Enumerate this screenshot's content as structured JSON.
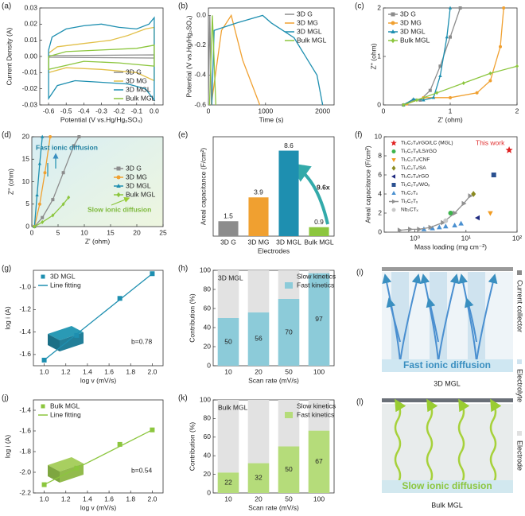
{
  "chart_data": [
    {
      "panel": "(a)",
      "type": "line",
      "xlabel": "Potential (V vs.Hg/Hg₂SO₄)",
      "ylabel": "Current Density (A)",
      "xlim": [
        -0.65,
        0.05
      ],
      "xticks": [
        -0.6,
        -0.5,
        -0.4,
        -0.3,
        -0.2,
        -0.1,
        {
          "value": 0,
          "label": "0.0"
        }
      ],
      "ylim": [
        -0.03,
        0.03
      ],
      "yticks": [
        -0.03,
        -0.02,
        -0.01,
        {
          "value": 0,
          "label": "0.00"
        },
        0.01,
        0.02,
        0.03
      ],
      "legend": "lower right",
      "series": [
        {
          "name": "3D G",
          "color": "#8c8c8c",
          "x": [
            -0.6,
            0,
            0,
            -0.6,
            -0.6
          ],
          "values": [
            0.0005,
            0.001,
            -0.001,
            -0.0005,
            0.0005
          ]
        },
        {
          "name": "3D MG",
          "color": "#e2c04a",
          "x": [
            -0.6,
            -0.55,
            -0.4,
            -0.25,
            -0.15,
            -0.05,
            0,
            0,
            -0.1,
            -0.3,
            -0.5,
            -0.6,
            -0.6
          ],
          "values": [
            0.002,
            0.006,
            0.008,
            0.01,
            0.013,
            0.017,
            0.018,
            -0.015,
            -0.01,
            -0.008,
            -0.007,
            -0.01,
            0.002
          ]
        },
        {
          "name": "3D MGL",
          "color": "#1e8fb0",
          "x": [
            -0.6,
            -0.58,
            -0.5,
            -0.4,
            -0.3,
            -0.2,
            -0.1,
            -0.03,
            0,
            0,
            -0.05,
            -0.15,
            -0.3,
            -0.45,
            -0.55,
            -0.6,
            -0.6
          ],
          "values": [
            0.004,
            0.012,
            0.017,
            0.019,
            0.02,
            0.018,
            0.017,
            0.02,
            0.024,
            -0.027,
            -0.02,
            -0.017,
            -0.016,
            -0.015,
            -0.018,
            -0.026,
            0.004
          ]
        },
        {
          "name": "Bulk MGL",
          "color": "#8cc63e",
          "x": [
            -0.6,
            -0.5,
            -0.3,
            -0.1,
            0,
            0,
            -0.2,
            -0.4,
            -0.6,
            -0.6
          ],
          "values": [
            0,
            0.003,
            0.004,
            0.005,
            0.007,
            -0.006,
            -0.004,
            -0.003,
            -0.008,
            0
          ]
        }
      ]
    },
    {
      "panel": "(b)",
      "type": "line",
      "xlabel": "Time (s)",
      "ylabel": "Potential (V vs.Hg/Hg₂SO₄)",
      "xlim": [
        0,
        2200
      ],
      "xticks": [
        0,
        1000,
        2000
      ],
      "ylim": [
        -0.6,
        0.05
      ],
      "yticks": [
        -0.6,
        -0.4,
        -0.2,
        {
          "value": 0,
          "label": "0.0"
        }
      ],
      "legend": "upper right",
      "series": [
        {
          "name": "3D G",
          "color": "#8c8c8c",
          "x": [
            0,
            25,
            55
          ],
          "values": [
            -0.6,
            0,
            -0.6
          ]
        },
        {
          "name": "3D MG",
          "color": "#f0a030",
          "x": [
            50,
            230,
            400,
            600,
            900
          ],
          "values": [
            -0.6,
            -0.1,
            0,
            -0.3,
            -0.6
          ]
        },
        {
          "name": "3D MGL",
          "color": "#1e8fb0",
          "x": [
            60,
            100,
            500,
            950,
            1100,
            1500,
            1900,
            2000
          ],
          "values": [
            -0.6,
            -0.1,
            -0.05,
            0,
            -0.05,
            -0.15,
            -0.4,
            -0.6
          ]
        },
        {
          "name": "Bulk MGL",
          "color": "#8cc63e",
          "x": [
            20,
            70,
            130
          ],
          "values": [
            -0.6,
            0,
            -0.6
          ]
        }
      ]
    },
    {
      "panel": "(c)",
      "type": "line",
      "xlabel": "Z' (ohm)",
      "ylabel": "Z'' (ohm)",
      "xlim": [
        0,
        2
      ],
      "xticks": [
        0,
        1,
        2
      ],
      "ylim": [
        0,
        2
      ],
      "yticks": [
        0,
        1,
        2
      ],
      "legend": "upper left",
      "series": [
        {
          "name": "3D G",
          "color": "#8c8c8c",
          "marker": "square",
          "x": [
            0.3,
            0.45,
            0.55,
            0.7,
            0.85,
            1.0,
            1.15
          ],
          "values": [
            0,
            0.1,
            0.1,
            0.3,
            0.8,
            1.4,
            2.0
          ]
        },
        {
          "name": "3D MG",
          "color": "#f0a030",
          "marker": "circle",
          "x": [
            0.35,
            0.6,
            1.0,
            1.4,
            1.6,
            1.75,
            1.8
          ],
          "values": [
            0.02,
            0.15,
            0.15,
            0.25,
            0.5,
            1.2,
            2.0
          ]
        },
        {
          "name": "3D MGL",
          "color": "#1e8fb0",
          "marker": "triangle",
          "x": [
            0.3,
            0.45,
            0.6,
            0.75,
            0.85,
            0.95,
            1.0
          ],
          "values": [
            0,
            0.12,
            0.1,
            0.15,
            0.6,
            1.4,
            2.0
          ]
        },
        {
          "name": "Bulk MGL",
          "color": "#8cc63e",
          "marker": "diamond",
          "x": [
            0.3,
            0.5,
            0.8,
            1.2,
            1.6,
            2.0
          ],
          "values": [
            0,
            0.1,
            0.25,
            0.45,
            0.65,
            0.8
          ]
        }
      ]
    },
    {
      "panel": "(d)",
      "type": "line",
      "xlabel": "Z' (ohm)",
      "ylabel": "Z'' (ohm)",
      "xlim": [
        0,
        25
      ],
      "xticks": [
        0,
        5,
        10,
        15,
        20,
        25
      ],
      "ylim": [
        0,
        20
      ],
      "yticks": [
        0,
        5,
        10,
        15,
        20
      ],
      "legend": "center right",
      "annotations": [
        "Fast ionic diffusion",
        "Slow ionic diffusion"
      ],
      "series": [
        {
          "name": "3D G",
          "color": "#8c8c8c",
          "marker": "square",
          "x": [
            0.5,
            2,
            4,
            6,
            8,
            9
          ],
          "values": [
            0,
            2,
            6,
            12,
            18,
            20
          ]
        },
        {
          "name": "3D MG",
          "color": "#f0a030",
          "marker": "circle",
          "x": [
            0.5,
            1.5,
            2.5,
            3.5
          ],
          "values": [
            0,
            5,
            12,
            20
          ]
        },
        {
          "name": "3D MGL",
          "color": "#1e8fb0",
          "marker": "triangle",
          "x": [
            0.5,
            1,
            1.5,
            2
          ],
          "values": [
            0,
            7,
            14,
            20
          ]
        },
        {
          "name": "Bulk MGL",
          "color": "#8cc63e",
          "marker": "diamond",
          "x": [
            0.5,
            2,
            4,
            6,
            7
          ],
          "values": [
            0,
            1,
            2.5,
            5,
            6.5
          ]
        }
      ]
    },
    {
      "panel": "(e)",
      "type": "bar",
      "xlabel": "Electrodes",
      "ylabel": "Areal capacitance (F/cm²)",
      "ylim": [
        0,
        10
      ],
      "categories": [
        "3D G",
        "3D MG",
        "3D MGL",
        "Bulk MGL"
      ],
      "values": [
        1.5,
        3.9,
        8.6,
        0.9
      ],
      "colors": [
        "#8c8c8c",
        "#f0a030",
        "#1e8fb0",
        "#8cc63e"
      ],
      "annotations": [
        "9.6x"
      ]
    },
    {
      "panel": "(f)",
      "type": "scatter",
      "xlog": true,
      "xlabel": "Mass loading (mg cm⁻²)",
      "ylabel": "Areal capacitance (F/cm²)",
      "xlim": [
        0.25,
        100
      ],
      "xticks": [
        {
          "value": 1,
          "label": "10⁰"
        },
        {
          "value": 10,
          "label": "10¹"
        },
        {
          "value": 100,
          "label": "10²"
        }
      ],
      "ylim": [
        0,
        10
      ],
      "yticks": [
        0,
        2,
        4,
        6,
        8,
        10
      ],
      "legend": "upper left",
      "annotations": [
        "This work"
      ],
      "series": [
        {
          "name": "Ti₃C₂Tₓ/rGO/LC (MGL)",
          "color": "#e02020",
          "marker": "star",
          "x": [
            70
          ],
          "values": [
            8.6
          ]
        },
        {
          "name": "Ti₃C₂Tₓ/LS/rGO",
          "color": "#3cb44b",
          "marker": "circle",
          "x": [
            5
          ],
          "values": [
            2
          ]
        },
        {
          "name": "Ti₃C₂Tₓ/CNF",
          "color": "#f29b20",
          "marker": "dtriangle",
          "x": [
            30
          ],
          "values": [
            2
          ]
        },
        {
          "name": "Ti₃C₂Tₓ/SA",
          "color": "#8a8a20",
          "marker": "diamond",
          "x": [
            14
          ],
          "values": [
            4
          ]
        },
        {
          "name": "Ti₃C₂Tₓ/rGO",
          "color": "#1f2a80",
          "marker": "ltriangle",
          "x": [
            17
          ],
          "values": [
            1.5
          ]
        },
        {
          "name": "Ti₃C₂Tₓ/WOₓ",
          "color": "#2a5090",
          "marker": "square",
          "x": [
            35
          ],
          "values": [
            6
          ]
        },
        {
          "name": "Ti₃C₂Tₓ",
          "color": "#4a90d0",
          "marker": "triangle",
          "x": [
            1.5,
            2.2,
            3,
            4,
            6,
            8
          ],
          "values": [
            0.3,
            0.4,
            0.5,
            0.6,
            0.7,
            0.9
          ]
        },
        {
          "name": "Ti₃C₂Tₓ",
          "color": "#909090",
          "marker": "rtriangle",
          "line": true,
          "x": [
            0.5,
            0.8,
            1.2,
            2,
            3.5,
            6,
            9,
            12
          ],
          "values": [
            0.2,
            0.3,
            0.3,
            0.5,
            1.0,
            2.0,
            3.0,
            3.8
          ]
        },
        {
          "name": "Nb₂CTₓ",
          "color": "#c8c8c8",
          "marker": "circle",
          "x": [
            4
          ],
          "values": [
            1.2
          ]
        }
      ]
    },
    {
      "panel": "(g)",
      "type": "scatter",
      "xlabel": "log v (mV/s)",
      "ylabel": "log i (A)",
      "xlim": [
        0.9,
        2.1
      ],
      "xticks": [
        {
          "value": 1,
          "label": "1.0"
        },
        1.2,
        1.4,
        1.6,
        1.8,
        {
          "value": 2,
          "label": "2.0"
        }
      ],
      "ylim": [
        -1.7,
        -0.85
      ],
      "yticks": [
        -1.6,
        -1.4,
        -1.2,
        {
          "value": -1,
          "label": "-1.0"
        }
      ],
      "legend": "upper left",
      "annotations": [
        "b=0.78"
      ],
      "series": [
        {
          "name": "3D MGL",
          "color": "#1e8fb0",
          "marker": "square",
          "x": [
            1,
            1.3,
            1.7,
            2
          ],
          "values": [
            -1.65,
            -1.43,
            -1.1,
            -0.88
          ]
        },
        {
          "name": "Line fitting",
          "color": "#1e8fb0",
          "type": "line",
          "x": [
            1,
            2
          ],
          "values": [
            -1.65,
            -0.88
          ]
        }
      ]
    },
    {
      "panel": "(h)",
      "type": "stacked_bar",
      "title": "3D MGL",
      "xlabel": "Scan rate (mV/s)",
      "ylabel": "Contribution (%)",
      "ylim": [
        0,
        100
      ],
      "yticks": [
        0,
        20,
        40,
        60,
        80,
        100
      ],
      "legend": "upper right",
      "categories": [
        "10",
        "20",
        "50",
        "100"
      ],
      "series": [
        {
          "name": "Slow kinetics",
          "color": "#e2e2e2",
          "values": [
            50,
            44,
            30,
            3
          ]
        },
        {
          "name": "Fast kinetics",
          "color": "#8ccbd9",
          "values": [
            50,
            56,
            70,
            97
          ],
          "labels": true
        }
      ]
    },
    {
      "panel": "(j)",
      "type": "scatter",
      "xlabel": "log v (mV/s)",
      "ylabel": "log i (A)",
      "xlim": [
        0.9,
        2.1
      ],
      "xticks": [
        {
          "value": 1,
          "label": "1.0"
        },
        1.2,
        1.4,
        1.6,
        1.8,
        {
          "value": 2,
          "label": "2.0"
        }
      ],
      "ylim": [
        -2.2,
        -1.3
      ],
      "yticks": [
        -2.2,
        {
          "value": -2,
          "label": "-2.0"
        },
        -1.8,
        -1.6,
        -1.4
      ],
      "legend": "upper left",
      "annotations": [
        "b=0.54"
      ],
      "series": [
        {
          "name": "Bulk MGL",
          "color": "#8cc63e",
          "marker": "square",
          "x": [
            1,
            1.3,
            1.7,
            2
          ],
          "values": [
            -2.12,
            -1.96,
            -1.73,
            -1.59
          ]
        },
        {
          "name": "Line fitting",
          "color": "#8cc63e",
          "type": "line",
          "x": [
            1,
            2
          ],
          "values": [
            -2.12,
            -1.59
          ]
        }
      ]
    },
    {
      "panel": "(k)",
      "type": "stacked_bar",
      "title": "Bulk MGL",
      "xlabel": "Scan rate (mV/s)",
      "ylabel": "Contribution (%)",
      "ylim": [
        0,
        100
      ],
      "yticks": [
        0,
        20,
        40,
        60,
        80,
        100
      ],
      "legend": "upper right",
      "categories": [
        "10",
        "20",
        "50",
        "100"
      ],
      "series": [
        {
          "name": "Slow kinetics",
          "color": "#e2e2e2",
          "values": [
            78,
            68,
            50,
            33
          ]
        },
        {
          "name": "Fast kinetics",
          "color": "#b5dc7a",
          "values": [
            22,
            32,
            50,
            67
          ],
          "labels": true
        }
      ]
    }
  ],
  "diagrams": [
    {
      "panel": "(i)",
      "caption": "Fast ionic diffusion",
      "label": "3D MGL"
    },
    {
      "panel": "(l)",
      "caption": "Slow ionic diffusion",
      "label": "Bulk MGL"
    }
  ],
  "side_labels": [
    "Current collector",
    "Electrolyte",
    "Electrode"
  ]
}
